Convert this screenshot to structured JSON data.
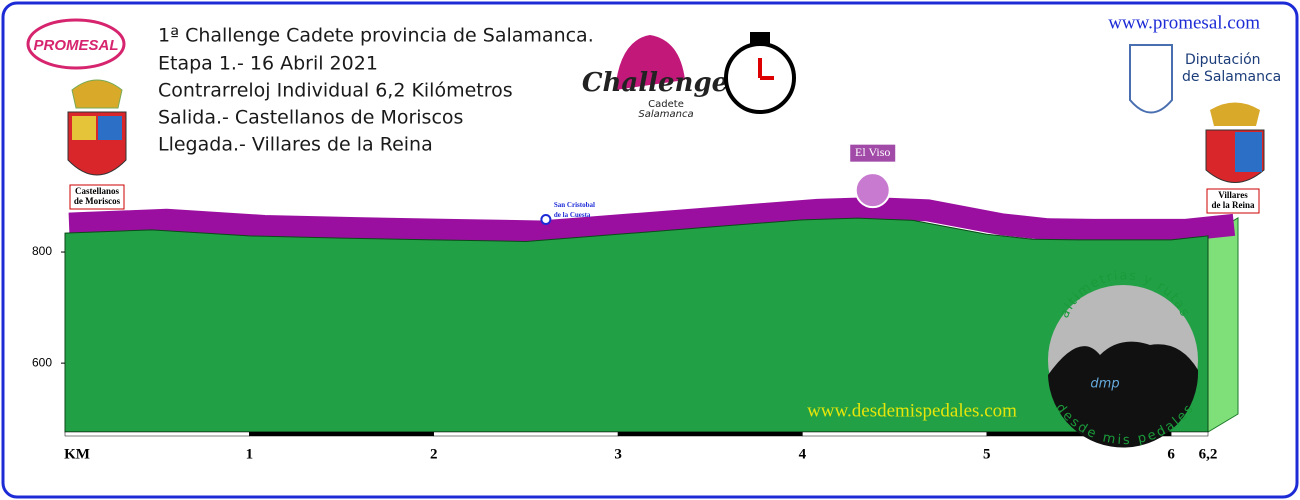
{
  "chart_data": {
    "type": "area",
    "title_lines": [
      "1ª Challenge Cadete provincia de Salamanca.",
      "Etapa 1.- 16 Abril 2021",
      "Contrarreloj Individual 6,2 Kilómetros",
      "Salida.- Castellanos de Moriscos",
      "Llegada.- Villares de la Reina"
    ],
    "x": [
      0,
      0.47,
      1,
      1.5,
      2,
      2.5,
      3,
      3.5,
      4,
      4.3,
      4.6,
      5,
      5.25,
      5.5,
      6,
      6.2
    ],
    "series": [
      {
        "color": "#22a045",
        "values": [
          834,
          840,
          829,
          825,
          822,
          819,
          832,
          845,
          858,
          861,
          857,
          832,
          823,
          822,
          822,
          829
        ]
      }
    ],
    "band_color": "#9b0fa0",
    "xlim": [
      0,
      6.2
    ],
    "xticks": [
      {
        "value": 0,
        "label": "KM"
      },
      1,
      2,
      3,
      4,
      5,
      6,
      {
        "value": 6.2,
        "label": "6,2"
      }
    ],
    "ylim": [
      476,
      900
    ],
    "yticks": [
      800,
      600
    ],
    "annotations": [
      {
        "text": [
          "San Cristobal",
          "de la Cuesta"
        ],
        "x": 2.5
      },
      {
        "text": [
          "El Viso"
        ],
        "x": 4.3
      }
    ],
    "start_label": [
      "Castellanos",
      "de Moriscos"
    ],
    "finish_label": [
      "Villares",
      "de la Reina"
    ],
    "website": "www.promesal.com",
    "sponsor": [
      "Diputación",
      "de Salamanca"
    ],
    "promesal_logo": "PROMESAL",
    "challenge_logo": [
      "Challenge",
      "Cadete",
      "Salamanca"
    ],
    "watermark": "www.desdemispedales.com",
    "dmp_logo": {
      "top": "altimetrias y rutas",
      "bottom": "desde mis pedales",
      "mark": "dmp"
    }
  }
}
